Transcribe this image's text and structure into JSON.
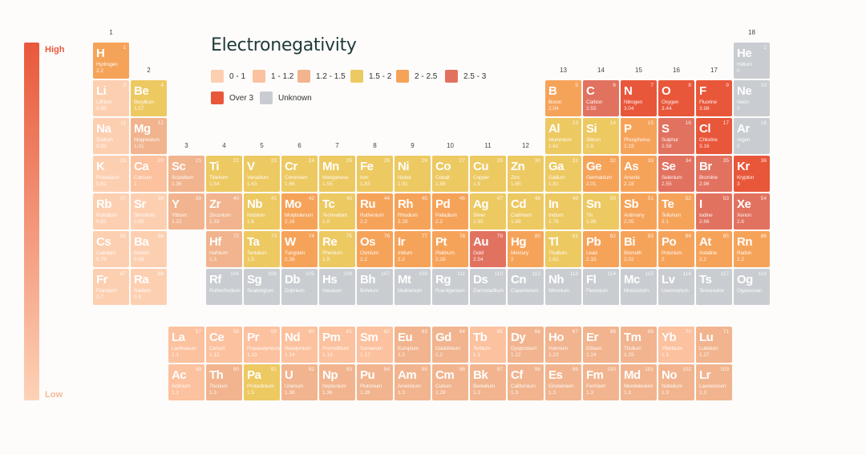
{
  "chart_data": {
    "type": "table",
    "title": "Electronegativity",
    "scale": {
      "high_label": "High",
      "low_label": "Low",
      "high_color": "#e9583b",
      "low_color": "#fdd2b6"
    },
    "legend": [
      {
        "label": "0 - 1",
        "color": "#fdcfb1",
        "min": 0,
        "max": 1
      },
      {
        "label": "1 - 1.2",
        "color": "#fcc19e",
        "min": 1,
        "max": 1.2
      },
      {
        "label": "1.2 - 1.5",
        "color": "#f1b48e",
        "min": 1.2,
        "max": 1.5
      },
      {
        "label": "1.5 - 2",
        "color": "#edc962",
        "min": 1.5,
        "max": 2
      },
      {
        "label": "2 - 2.5",
        "color": "#f6a35a",
        "min": 2,
        "max": 2.5
      },
      {
        "label": "2.5 - 3",
        "color": "#e27260",
        "min": 2.5,
        "max": 3
      },
      {
        "label": "Over 3",
        "color": "#e9573b",
        "min": 3,
        "max": 99
      },
      {
        "label": "Unknown",
        "color": "#c9cdd1",
        "min": null,
        "max": null
      }
    ],
    "groups": [
      "1",
      "2",
      "3",
      "4",
      "5",
      "6",
      "7",
      "8",
      "9",
      "10",
      "11",
      "12",
      "13",
      "14",
      "15",
      "16",
      "17",
      "18"
    ],
    "elements": [
      [
        "H",
        "Hydrogen",
        "1",
        "2.2",
        1,
        1
      ],
      [
        "He",
        "Helium",
        "2",
        "0",
        18,
        1
      ],
      [
        "Li",
        "Lithium",
        "3",
        "0.98",
        1,
        2
      ],
      [
        "Be",
        "Beryllium",
        "4",
        "1.57",
        2,
        2
      ],
      [
        "B",
        "Boron",
        "5",
        "2.04",
        13,
        2
      ],
      [
        "C",
        "Carbon",
        "6",
        "2.55",
        14,
        2
      ],
      [
        "N",
        "Nitrogen",
        "7",
        "3.04",
        15,
        2
      ],
      [
        "O",
        "Oxygen",
        "8",
        "3.44",
        16,
        2
      ],
      [
        "F",
        "Fluorine",
        "9",
        "3.98",
        17,
        2
      ],
      [
        "Ne",
        "Neon",
        "10",
        "0",
        18,
        2
      ],
      [
        "Na",
        "Sodium",
        "11",
        "0.93",
        1,
        3
      ],
      [
        "Mg",
        "Magnesium",
        "12",
        "1.31",
        2,
        3
      ],
      [
        "Al",
        "Aluminium",
        "13",
        "1.61",
        13,
        3
      ],
      [
        "Si",
        "Silicon",
        "14",
        "1.9",
        14,
        3
      ],
      [
        "P",
        "Phosphorus",
        "15",
        "2.19",
        15,
        3
      ],
      [
        "S",
        "Sulphur",
        "16",
        "2.58",
        16,
        3
      ],
      [
        "Cl",
        "Chlorine",
        "17",
        "3.16",
        17,
        3
      ],
      [
        "Ar",
        "Argon",
        "18",
        "0",
        18,
        3
      ],
      [
        "K",
        "Potassium",
        "19",
        "0.82",
        1,
        4
      ],
      [
        "Ca",
        "Calcium",
        "20",
        "1",
        2,
        4
      ],
      [
        "Sc",
        "Scandium",
        "21",
        "1.36",
        3,
        4
      ],
      [
        "Ti",
        "Titanium",
        "22",
        "1.54",
        4,
        4
      ],
      [
        "V",
        "Vanadium",
        "23",
        "1.63",
        5,
        4
      ],
      [
        "Cr",
        "Chromium",
        "24",
        "1.66",
        6,
        4
      ],
      [
        "Mn",
        "Manganese",
        "25",
        "1.55",
        7,
        4
      ],
      [
        "Fe",
        "Iron",
        "26",
        "1.83",
        8,
        4
      ],
      [
        "Ni",
        "Nickel",
        "28",
        "1.91",
        9,
        4
      ],
      [
        "Co",
        "Cobalt",
        "27",
        "1.88",
        10,
        4
      ],
      [
        "Cu",
        "Copper",
        "29",
        "1.9",
        11,
        4
      ],
      [
        "Zn",
        "Zinc",
        "30",
        "1.65",
        12,
        4
      ],
      [
        "Ga",
        "Gallium",
        "31",
        "1.81",
        13,
        4
      ],
      [
        "Ge",
        "Germanium",
        "32",
        "2.01",
        14,
        4
      ],
      [
        "As",
        "Arsenic",
        "33",
        "2.18",
        15,
        4
      ],
      [
        "Se",
        "Selenium",
        "34",
        "2.55",
        16,
        4
      ],
      [
        "Br",
        "Bromine",
        "35",
        "2.96",
        17,
        4
      ],
      [
        "Kr",
        "Krypton",
        "36",
        "3",
        18,
        4
      ],
      [
        "Rb",
        "Rubidium",
        "37",
        "0.82",
        1,
        5
      ],
      [
        "Sr",
        "Strontium",
        "38",
        "0.95",
        2,
        5
      ],
      [
        "Y",
        "Yttrium",
        "39",
        "1.22",
        3,
        5
      ],
      [
        "Zr",
        "Zirconium",
        "40",
        "1.33",
        4,
        5
      ],
      [
        "Nb",
        "Niobium",
        "41",
        "1.6",
        5,
        5
      ],
      [
        "Mo",
        "Molybdenum",
        "42",
        "2.16",
        6,
        5
      ],
      [
        "Tc",
        "Technetium",
        "43",
        "1.9",
        7,
        5
      ],
      [
        "Ru",
        "Ruthenium",
        "44",
        "2.2",
        8,
        5
      ],
      [
        "Rh",
        "Rhodium",
        "45",
        "2.28",
        9,
        5
      ],
      [
        "Pd",
        "Palladium",
        "46",
        "2.2",
        10,
        5
      ],
      [
        "Ag",
        "Silver",
        "47",
        "1.93",
        11,
        5
      ],
      [
        "Cd",
        "Cadmium",
        "48",
        "1.69",
        12,
        5
      ],
      [
        "In",
        "Indium",
        "49",
        "1.78",
        13,
        5
      ],
      [
        "Sn",
        "Tin",
        "50",
        "1.96",
        14,
        5
      ],
      [
        "Sb",
        "Antimony",
        "51",
        "2.05",
        15,
        5
      ],
      [
        "Te",
        "Tellurium",
        "52",
        "2.1",
        16,
        5
      ],
      [
        "I",
        "Iodine",
        "53",
        "2.66",
        17,
        5
      ],
      [
        "Xe",
        "Xenon",
        "54",
        "2.6",
        18,
        5
      ],
      [
        "Cs",
        "Caesium",
        "55",
        "0.79",
        1,
        6
      ],
      [
        "Ba",
        "Barium",
        "56",
        "0.89",
        2,
        6
      ],
      [
        "Hf",
        "Hafnium",
        "72",
        "1.3",
        4,
        6
      ],
      [
        "Ta",
        "Tantalum",
        "73",
        "1.5",
        5,
        6
      ],
      [
        "W",
        "Tungsten",
        "74",
        "2.36",
        6,
        6
      ],
      [
        "Re",
        "Rhenium",
        "75",
        "1.9",
        7,
        6
      ],
      [
        "Os",
        "Osmium",
        "76",
        "2.2",
        8,
        6
      ],
      [
        "Ir",
        "Iridium",
        "77",
        "2.2",
        9,
        6
      ],
      [
        "Pt",
        "Platinum",
        "78",
        "2.28",
        10,
        6
      ],
      [
        "Au",
        "Gold",
        "79",
        "2.54",
        11,
        6
      ],
      [
        "Hg",
        "Mercury",
        "80",
        "2",
        12,
        6
      ],
      [
        "Tl",
        "Thallium",
        "81",
        "1.62",
        13,
        6
      ],
      [
        "Pb",
        "Lead",
        "82",
        "2.33",
        14,
        6
      ],
      [
        "Bi",
        "Bismuth",
        "83",
        "2.02",
        15,
        6
      ],
      [
        "Po",
        "Polonium",
        "84",
        "2",
        16,
        6
      ],
      [
        "At",
        "Astatine",
        "85",
        "2.2",
        17,
        6
      ],
      [
        "Rn",
        "Radon",
        "86",
        "2.2",
        18,
        6
      ],
      [
        "Fr",
        "Francium",
        "87",
        "0.7",
        1,
        7
      ],
      [
        "Ra",
        "Radium",
        "88",
        "0.9",
        2,
        7
      ],
      [
        "Rf",
        "Rutherfordium",
        "104",
        "",
        4,
        7
      ],
      [
        "Sg",
        "Seaborgium",
        "106",
        "",
        5,
        7
      ],
      [
        "Db",
        "Dubnium",
        "105",
        "",
        6,
        7
      ],
      [
        "Hs",
        "Hassium",
        "108",
        "",
        7,
        7
      ],
      [
        "Bh",
        "Bohrium",
        "107",
        "",
        8,
        7
      ],
      [
        "Mt",
        "Meitnerium",
        "109",
        "",
        9,
        7
      ],
      [
        "Rg",
        "Roentgenium",
        "111",
        "",
        10,
        7
      ],
      [
        "Ds",
        "Darmstadtium",
        "110",
        "",
        11,
        7
      ],
      [
        "Cn",
        "Copernicium",
        "112",
        "",
        12,
        7
      ],
      [
        "Nh",
        "Nihonium",
        "113",
        "",
        13,
        7
      ],
      [
        "Fl",
        "Flerovium",
        "114",
        "",
        14,
        7
      ],
      [
        "Mc",
        "Moscovium",
        "115",
        "",
        15,
        7
      ],
      [
        "Lv",
        "Livermorium",
        "116",
        "",
        16,
        7
      ],
      [
        "Ts",
        "Tennessine",
        "117",
        "",
        17,
        7
      ],
      [
        "Og",
        "Oganesson",
        "118",
        "",
        18,
        7
      ],
      [
        "La",
        "Lanthanum",
        "57",
        "1.1",
        3,
        8
      ],
      [
        "Ce",
        "Cerium",
        "58",
        "1.12",
        4,
        8
      ],
      [
        "Pr",
        "Praseodymium",
        "59",
        "1.13",
        5,
        8
      ],
      [
        "Nd",
        "Neodymium",
        "60",
        "1.14",
        6,
        8
      ],
      [
        "Pm",
        "Promethium",
        "61",
        "1.13",
        7,
        8
      ],
      [
        "Sm",
        "Samarium",
        "62",
        "1.17",
        8,
        8
      ],
      [
        "Eu",
        "Europium",
        "63",
        "1.2",
        9,
        8
      ],
      [
        "Gd",
        "Gadolinium",
        "64",
        "1.2",
        10,
        8
      ],
      [
        "Tb",
        "Terbium",
        "65",
        "1.1",
        11,
        8
      ],
      [
        "Dy",
        "Dysprosium",
        "66",
        "1.22",
        12,
        8
      ],
      [
        "Ho",
        "Holmium",
        "67",
        "1.23",
        13,
        8
      ],
      [
        "Er",
        "Erbium",
        "68",
        "1.24",
        14,
        8
      ],
      [
        "Tm",
        "Thulium",
        "69",
        "1.25",
        15,
        8
      ],
      [
        "Yb",
        "Ytterbium",
        "70",
        "1.1",
        16,
        8
      ],
      [
        "Lu",
        "Lutetium",
        "71",
        "1.27",
        17,
        8
      ],
      [
        "Ac",
        "Actinium",
        "89",
        "1.1",
        3,
        9
      ],
      [
        "Th",
        "Thorium",
        "90",
        "1.3",
        4,
        9
      ],
      [
        "Pa",
        "Protactinium",
        "91",
        "1.5",
        5,
        9
      ],
      [
        "U",
        "Uranium",
        "92",
        "1.38",
        6,
        9
      ],
      [
        "Np",
        "Neptunium",
        "93",
        "1.36",
        7,
        9
      ],
      [
        "Pu",
        "Plutonium",
        "94",
        "1.28",
        8,
        9
      ],
      [
        "Am",
        "Americium",
        "95",
        "1.3",
        9,
        9
      ],
      [
        "Cm",
        "Curium",
        "96",
        "1.28",
        10,
        9
      ],
      [
        "Bk",
        "Berkelium",
        "97",
        "1.3",
        11,
        9
      ],
      [
        "Cf",
        "Californium",
        "98",
        "1.3",
        12,
        9
      ],
      [
        "Es",
        "Einsteinium",
        "99",
        "1.3",
        13,
        9
      ],
      [
        "Fm",
        "Fermium",
        "100",
        "1.3",
        14,
        9
      ],
      [
        "Md",
        "Mendelevium",
        "101",
        "1.3",
        15,
        9
      ],
      [
        "No",
        "Nobelium",
        "102",
        "1.3",
        16,
        9
      ],
      [
        "Lr",
        "Lawrencium",
        "103",
        "1.3",
        17,
        9
      ]
    ]
  }
}
